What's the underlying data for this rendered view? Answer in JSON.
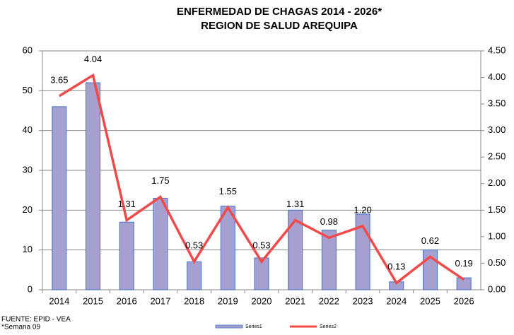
{
  "chart_data": {
    "type": "bar",
    "title": "ENFERMEDAD DE CHAGAS  2014 - 2026*",
    "subtitle": "REGION DE SALUD AREQUIPA",
    "categories": [
      "2014",
      "2015",
      "2016",
      "2017",
      "2018",
      "2019",
      "2020",
      "2021",
      "2022",
      "2023",
      "2024",
      "2025",
      "2026"
    ],
    "series": [
      {
        "name": "Series1",
        "type": "bar",
        "color": "#a5a0cf",
        "values": [
          46,
          52,
          17,
          23,
          7,
          21,
          8,
          20,
          15,
          19,
          2,
          10,
          3
        ]
      },
      {
        "name": "Series2",
        "type": "line",
        "axis": "y2",
        "color": "#f24a4a",
        "values": [
          3.65,
          4.04,
          1.31,
          1.75,
          0.53,
          1.55,
          0.53,
          1.31,
          0.98,
          1.2,
          0.13,
          0.62,
          0.19
        ],
        "value_labels": [
          "3.65",
          "4.04",
          "1.31",
          "1.75",
          "0.53",
          "1.55",
          "0.53",
          "1.31",
          "0.98",
          "1.20",
          "0.13",
          "0.62",
          "0.19"
        ]
      }
    ],
    "ylim": [
      0,
      60
    ],
    "yticks": [
      0,
      10,
      20,
      30,
      40,
      50,
      60
    ],
    "y2lim": [
      0,
      4.5
    ],
    "y2ticks": [
      {
        "value": 0,
        "label": "0.00"
      },
      {
        "value": 0.5,
        "label": "0.50"
      },
      {
        "value": 1,
        "label": "1.00"
      },
      {
        "value": 1.5,
        "label": "1.50"
      },
      {
        "value": 2,
        "label": "2.00"
      },
      {
        "value": 2.5,
        "label": "2.50"
      },
      {
        "value": 3,
        "label": "3.00"
      },
      {
        "value": 3.5,
        "label": "3.50"
      },
      {
        "value": 4,
        "label": "4.00"
      },
      {
        "value": 4.5,
        "label": "4.50"
      }
    ],
    "grid": true,
    "legend": "bottom",
    "notes": [
      "FUENTE: EPID - VEA",
      "*Semana  09"
    ]
  }
}
